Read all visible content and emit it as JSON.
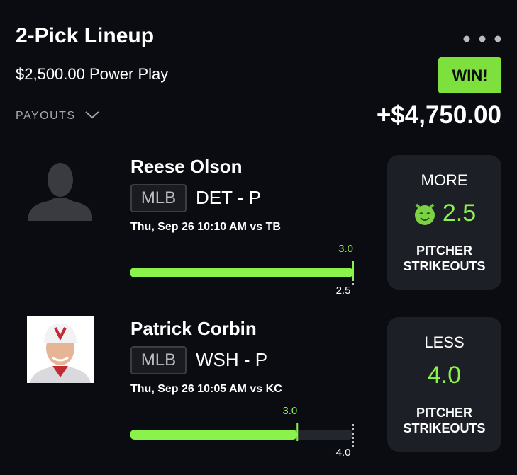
{
  "header": {
    "title": "2-Pick Lineup",
    "entry": "$2,500.00 Power Play",
    "payouts": "PAYOUTS",
    "status": "WIN!",
    "payout_amount": "+$4,750.00"
  },
  "picks": [
    {
      "name": "Reese Olson",
      "league": "MLB",
      "team": "DET - P",
      "time": "Thu, Sep 26 10:10 AM  vs TB",
      "actual": {
        "value": 3,
        "label": "3.0"
      },
      "line": {
        "value": 2.5,
        "label": "2.5"
      },
      "direction": "MORE",
      "stat": [
        "PITCHER",
        "STRIKEOUTS"
      ],
      "photo": false,
      "emoji": true
    },
    {
      "name": "Patrick Corbin",
      "league": "MLB",
      "team": "WSH - P",
      "time": "Thu, Sep 26 10:05 AM  vs KC",
      "actual": {
        "value": 3,
        "label": "3.0"
      },
      "line": {
        "value": 4,
        "label": "4.0"
      },
      "direction": "LESS",
      "stat": [
        "PITCHER",
        "STRIKEOUTS"
      ],
      "photo": true,
      "emoji": false
    }
  ]
}
